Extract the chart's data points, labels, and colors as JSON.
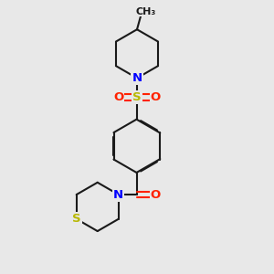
{
  "bg_color": "#e8e8e8",
  "bond_color": "#1a1a1a",
  "N_color": "#0000ff",
  "O_color": "#ff2200",
  "S_color": "#b8b800",
  "lw": 1.5,
  "dbo": 0.018,
  "fs": 9.5,
  "fs_small": 8.0,
  "figsize": [
    3.0,
    3.0
  ],
  "dpi": 100,
  "xlim": [
    2.0,
    8.5
  ],
  "ylim": [
    0.3,
    10.8
  ]
}
